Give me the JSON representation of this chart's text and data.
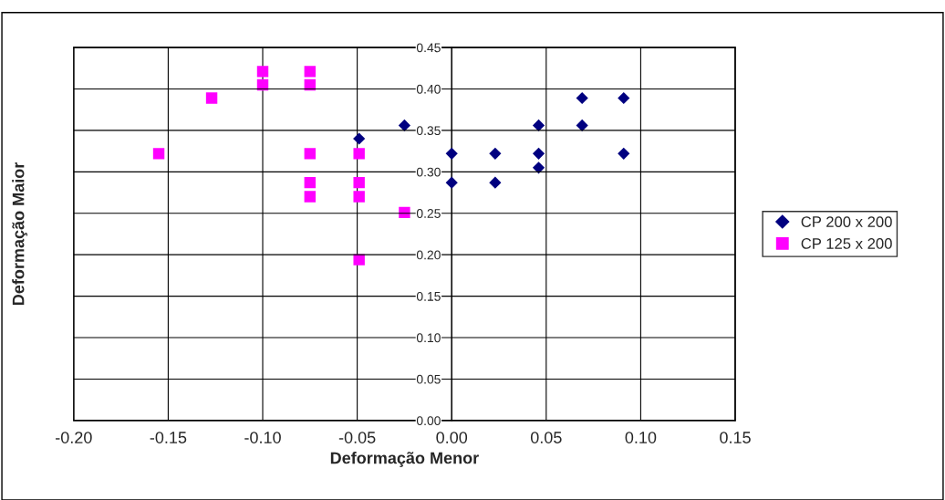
{
  "chart_data": {
    "type": "scatter",
    "xlabel": "Deformação Menor",
    "ylabel": "Deformação Maior",
    "xlim": [
      -0.2,
      0.15
    ],
    "ylim": [
      0,
      0.45
    ],
    "xticks": [
      {
        "value": -0.2,
        "label": "-0.20"
      },
      {
        "value": -0.15,
        "label": "-0.15"
      },
      {
        "value": -0.1,
        "label": "-0.10"
      },
      {
        "value": -0.05,
        "label": "-0.05"
      },
      {
        "value": 0,
        "label": "0.00"
      },
      {
        "value": 0.05,
        "label": "0.05"
      },
      {
        "value": 0.1,
        "label": "0.10"
      },
      {
        "value": 0.15,
        "label": "0.15"
      }
    ],
    "yticks": [
      {
        "value": 0,
        "label": "0.00"
      },
      {
        "value": 0.05,
        "label": "0.05"
      },
      {
        "value": 0.1,
        "label": "0.10"
      },
      {
        "value": 0.15,
        "label": "0.15"
      },
      {
        "value": 0.2,
        "label": "0.20"
      },
      {
        "value": 0.25,
        "label": "0.25"
      },
      {
        "value": 0.3,
        "label": "0.30"
      },
      {
        "value": 0.35,
        "label": "0.35"
      },
      {
        "value": 0.4,
        "label": "0.40"
      },
      {
        "value": 0.45,
        "label": "0.45"
      }
    ],
    "grid": true,
    "legend": "right",
    "series": [
      {
        "name": "CP 200 x 200",
        "color": "#000080",
        "marker": "diamond",
        "x": [
          -0.025,
          -0.049,
          0,
          0,
          0.023,
          0.023,
          0.046,
          0.046,
          0.046,
          0.069,
          0.069,
          0.091,
          0.091
        ],
        "values": [
          0.356,
          0.34,
          0.322,
          0.287,
          0.322,
          0.287,
          0.356,
          0.322,
          0.305,
          0.389,
          0.356,
          0.389,
          0.322
        ]
      },
      {
        "name": "CP 125 x 200",
        "color": "#ff00ff",
        "marker": "square",
        "x": [
          -0.155,
          -0.127,
          -0.1,
          -0.1,
          -0.075,
          -0.075,
          -0.075,
          -0.075,
          -0.075,
          -0.049,
          -0.049,
          -0.049,
          -0.049,
          -0.025
        ],
        "values": [
          0.322,
          0.389,
          0.421,
          0.405,
          0.421,
          0.405,
          0.322,
          0.287,
          0.27,
          0.322,
          0.287,
          0.27,
          0.194,
          0.251
        ]
      }
    ]
  }
}
